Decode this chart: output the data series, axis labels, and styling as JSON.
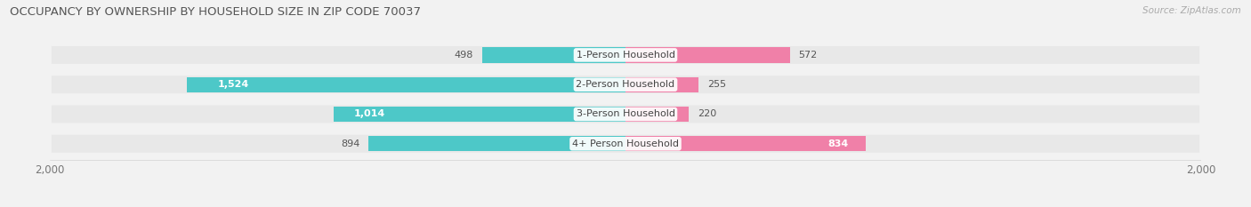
{
  "title": "OCCUPANCY BY OWNERSHIP BY HOUSEHOLD SIZE IN ZIP CODE 70037",
  "source": "Source: ZipAtlas.com",
  "categories": [
    "1-Person Household",
    "2-Person Household",
    "3-Person Household",
    "4+ Person Household"
  ],
  "owner_values": [
    498,
    1524,
    1014,
    894
  ],
  "renter_values": [
    572,
    255,
    220,
    834
  ],
  "max_val": 2000,
  "owner_color": "#4DC8C8",
  "renter_color": "#F080A8",
  "bg_color": "#F2F2F2",
  "row_bg_color": "#E8E8E8",
  "title_fontsize": 9.5,
  "label_fontsize": 8,
  "value_fontsize": 8,
  "tick_fontsize": 8.5,
  "legend_fontsize": 8,
  "source_fontsize": 7.5
}
